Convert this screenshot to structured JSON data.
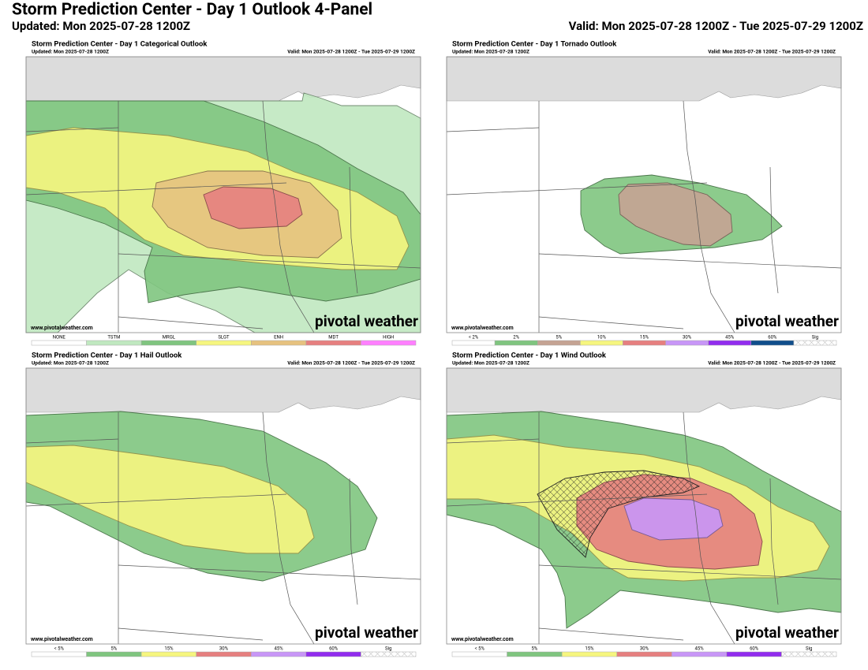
{
  "header": {
    "title": "Storm Prediction Center - Day 1 Outlook 4-Panel",
    "updated": "Updated: Mon 2025-07-28 1200Z",
    "valid": "Valid: Mon 2025-07-28 1200Z - Tue 2025-07-29 1200Z"
  },
  "panels": [
    {
      "title": "Storm Prediction Center - Day 1 Categorical Outlook",
      "updated": "Updated: Mon 2025-07-28 1200Z",
      "valid": "Valid: Mon 2025-07-28 1200Z - Tue 2025-07-29 1200Z",
      "credit": "www.pivotalweather.com",
      "logo": "pivotal weather",
      "legend": [
        {
          "label": "NONE",
          "color": "#ffffff"
        },
        {
          "label": "TSTM",
          "color": "#c0e8c0"
        },
        {
          "label": "MRGL",
          "color": "#7fc57f"
        },
        {
          "label": "SLGT",
          "color": "#f6f67f"
        },
        {
          "label": "ENH",
          "color": "#e6c27f"
        },
        {
          "label": "MDT",
          "color": "#e67f7f"
        },
        {
          "label": "HIGH",
          "color": "#ff7fff"
        }
      ]
    },
    {
      "title": "Storm Prediction Center - Day 1 Tornado Outlook",
      "updated": "Updated: Mon 2025-07-28 1200Z",
      "valid": "Valid: Mon 2025-07-28 1200Z - Tue 2025-07-29 1200Z",
      "credit": "www.pivotalweather.com",
      "logo": "pivotal weather",
      "legend": [
        {
          "label": "< 2%",
          "color": "#ffffff"
        },
        {
          "label": "2%",
          "color": "#7fc57f"
        },
        {
          "label": "5%",
          "color": "#c5a393"
        },
        {
          "label": "10%",
          "color": "#f6f67f"
        },
        {
          "label": "15%",
          "color": "#e67f7f"
        },
        {
          "label": "30%",
          "color": "#c896f7"
        },
        {
          "label": "45%",
          "color": "#912cee"
        },
        {
          "label": "60%",
          "color": "#104e8b"
        },
        {
          "label": "Sig",
          "color": "#dddddd"
        }
      ]
    },
    {
      "title": "Storm Prediction Center - Day 1 Hail Outlook",
      "updated": "Updated: Mon 2025-07-28 1200Z",
      "valid": "Valid: Mon 2025-07-28 1200Z - Tue 2025-07-29 1200Z",
      "credit": "www.pivotalweather.com",
      "logo": "pivotal weather",
      "legend": [
        {
          "label": "< 5%",
          "color": "#ffffff"
        },
        {
          "label": "5%",
          "color": "#7fc57f"
        },
        {
          "label": "15%",
          "color": "#f6f67f"
        },
        {
          "label": "30%",
          "color": "#e67f7f"
        },
        {
          "label": "45%",
          "color": "#c896f7"
        },
        {
          "label": "60%",
          "color": "#912cee"
        },
        {
          "label": "Sig",
          "color": "#dddddd"
        }
      ]
    },
    {
      "title": "Storm Prediction Center - Day 1 Wind Outlook",
      "updated": "Updated: Mon 2025-07-28 1200Z",
      "valid": "Valid: Mon 2025-07-28 1200Z - Tue 2025-07-29 1200Z",
      "credit": "www.pivotalweather.com",
      "logo": "pivotal weather",
      "legend": [
        {
          "label": "< 5%",
          "color": "#ffffff"
        },
        {
          "label": "5%",
          "color": "#7fc57f"
        },
        {
          "label": "15%",
          "color": "#f6f67f"
        },
        {
          "label": "30%",
          "color": "#e67f7f"
        },
        {
          "label": "45%",
          "color": "#c896f7"
        },
        {
          "label": "60%",
          "color": "#912cee"
        },
        {
          "label": "Sig",
          "color": "#dddddd"
        }
      ]
    }
  ]
}
